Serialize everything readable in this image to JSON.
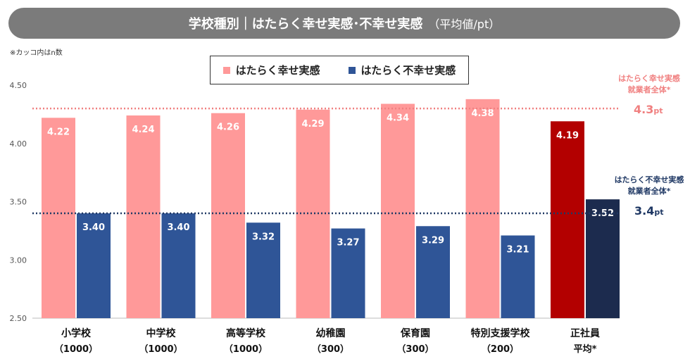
{
  "header": {
    "title": "学校種別｜はたらく幸せ実感･不幸せ実感",
    "subtitle": "（平均値/pt）"
  },
  "note": "※カッコ内はn数",
  "legend": {
    "happy": "はたらく幸せ実感",
    "unhappy": "はたらく不幸せ実感"
  },
  "colors": {
    "happy": "#ff9999",
    "unhappy": "#2f5597",
    "happy_highlight": "#b30000",
    "unhappy_highlight": "#1c2b4e",
    "happy_ref": "#f08080",
    "unhappy_ref": "#1f3864"
  },
  "reference": {
    "happy": {
      "label_line1": "はたらく幸せ実感",
      "label_line2": "就業者全体*",
      "value": 4.3,
      "value_text": "4.3",
      "unit": "pt"
    },
    "unhappy": {
      "label_line1": "はたらく不幸せ実感",
      "label_line2": "就業者全体*",
      "value": 3.4,
      "value_text": "3.4",
      "unit": "pt"
    }
  },
  "chart_data": {
    "type": "bar",
    "categories": [
      {
        "name": "小学校",
        "n": "（1000）"
      },
      {
        "name": "中学校",
        "n": "（1000）"
      },
      {
        "name": "高等学校",
        "n": "（1000）"
      },
      {
        "name": "幼稚園",
        "n": "（300）"
      },
      {
        "name": "保育園",
        "n": "（300）"
      },
      {
        "name": "特別支援学校",
        "n": "（200）"
      },
      {
        "name": "正社員",
        "n": "平均*"
      }
    ],
    "series": [
      {
        "name": "はたらく幸せ実感",
        "values": [
          4.22,
          4.24,
          4.26,
          4.29,
          4.34,
          4.38,
          4.19
        ]
      },
      {
        "name": "はたらく不幸せ実感",
        "values": [
          3.4,
          3.4,
          3.32,
          3.27,
          3.29,
          3.21,
          3.52
        ]
      }
    ],
    "highlight_index": 6,
    "ylim": [
      2.5,
      4.5
    ],
    "yticks": [
      "2.50",
      "3.00",
      "3.50",
      "4.00",
      "4.50"
    ],
    "grid": false
  }
}
